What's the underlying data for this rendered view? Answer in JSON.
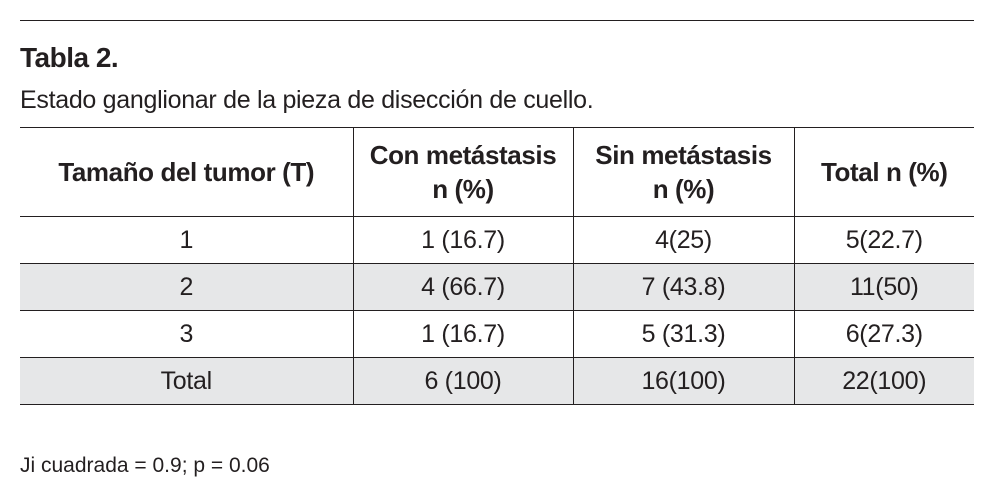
{
  "table_label": "Tabla 2.",
  "caption": "Estado ganglionar de la pieza de disección de cuello.",
  "headers": [
    {
      "line1": "Tamaño del tumor (T)",
      "line2": ""
    },
    {
      "line1": "Con metástasis",
      "line2": "n (%)"
    },
    {
      "line1": "Sin metástasis",
      "line2": "n (%)"
    },
    {
      "line1": "Total n (%)",
      "line2": ""
    }
  ],
  "rows": [
    {
      "size": "1",
      "con": "1 (16.7)",
      "sin": "4(25)",
      "total": "5(22.7)"
    },
    {
      "size": "2",
      "con": "4 (66.7)",
      "sin": "7 (43.8)",
      "total": "11(50)"
    },
    {
      "size": "3",
      "con": "1 (16.7)",
      "sin": "5 (31.3)",
      "total": "6(27.3)"
    },
    {
      "size": "Total",
      "con": "6 (100)",
      "sin": "16(100)",
      "total": "22(100)"
    }
  ],
  "footnote": "Ji cuadrada = 0.9; p = 0.06",
  "colors": {
    "text": "#231f20",
    "row_shade": "#e6e7e8",
    "rule": "#231f20"
  }
}
